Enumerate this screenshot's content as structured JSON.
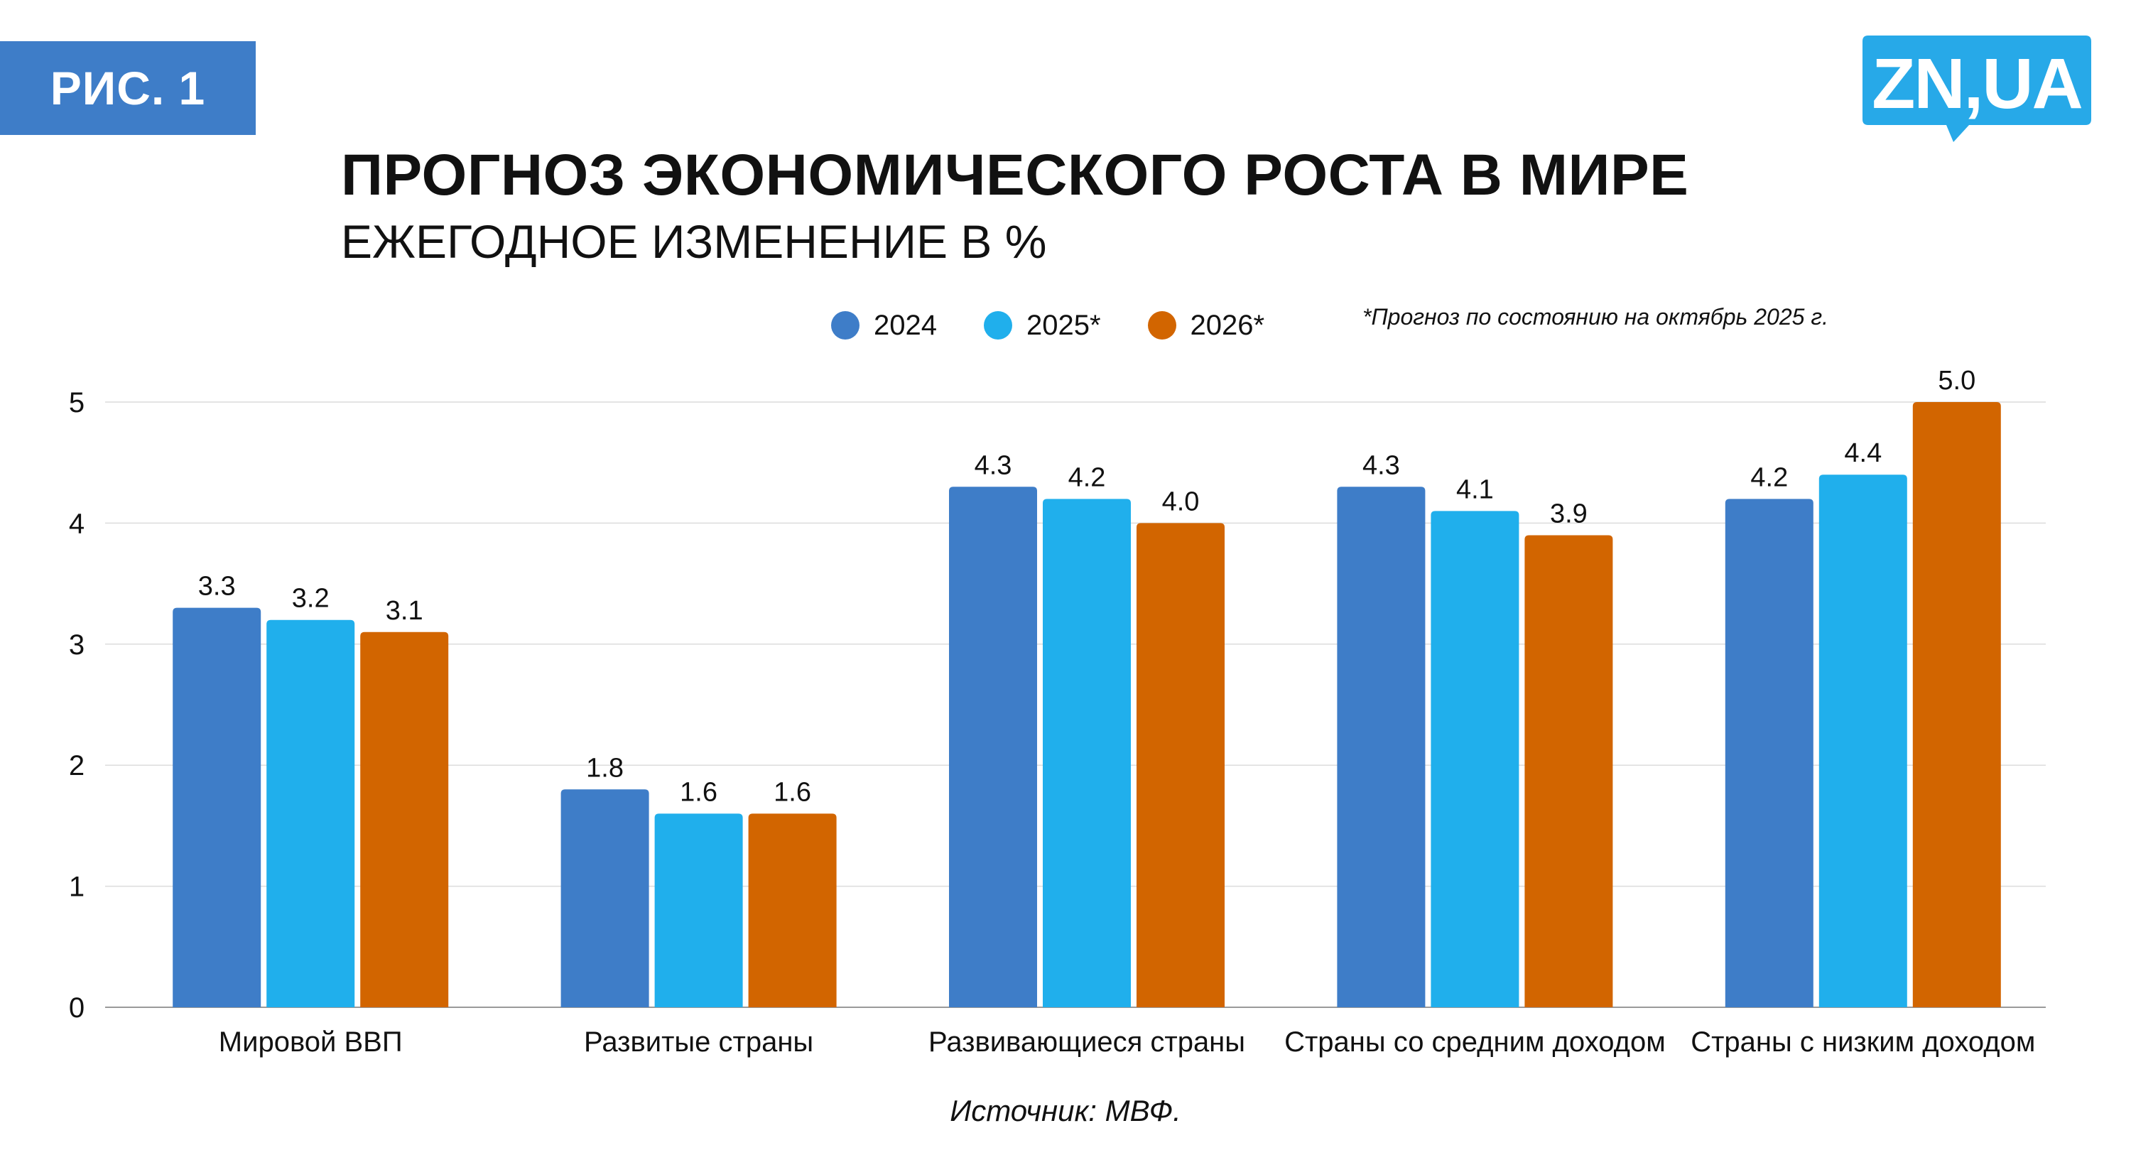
{
  "figure_label": "РИС. 1",
  "logo_text": "ZN,UA",
  "title": "ПРОГНОЗ ЭКОНОМИЧЕСКОГО РОСТА В МИРЕ",
  "subtitle": "ЕЖЕГОДНОЕ ИЗМЕНЕНИЕ В %",
  "footnote": "*Прогноз по состоянию на октябрь 2025 г.",
  "source": "Источник: МВФ.",
  "colors": {
    "brand": "#3E7DC8",
    "logo": "#27A9E8"
  },
  "chart_data": {
    "type": "bar",
    "categories": [
      "Мировой ВВП",
      "Развитые страны",
      "Развивающиеся страны",
      "Страны со средним доходом",
      "Страны с низким доходом"
    ],
    "series": [
      {
        "name": "2024",
        "color": "#3E7DC8",
        "values": [
          3.3,
          1.8,
          4.3,
          4.3,
          4.2
        ],
        "labels": [
          "3.3",
          "1.8",
          "4.3",
          "4.3",
          "4.2"
        ]
      },
      {
        "name": "2025*",
        "color": "#20AFEC",
        "values": [
          3.2,
          1.6,
          4.2,
          4.1,
          4.4
        ],
        "labels": [
          "3.2",
          "1.6",
          "4.2",
          "4.1",
          "4.4"
        ]
      },
      {
        "name": "2026*",
        "color": "#D26500",
        "values": [
          3.1,
          1.6,
          4.0,
          3.9,
          5.0
        ],
        "labels": [
          "3.1",
          "1.6",
          "4.0",
          "3.9",
          "5.0"
        ]
      }
    ],
    "yticks": [
      "0",
      "1",
      "2",
      "3",
      "4",
      "5"
    ],
    "ylim": [
      0,
      5
    ],
    "grid": true,
    "legend": "top"
  }
}
